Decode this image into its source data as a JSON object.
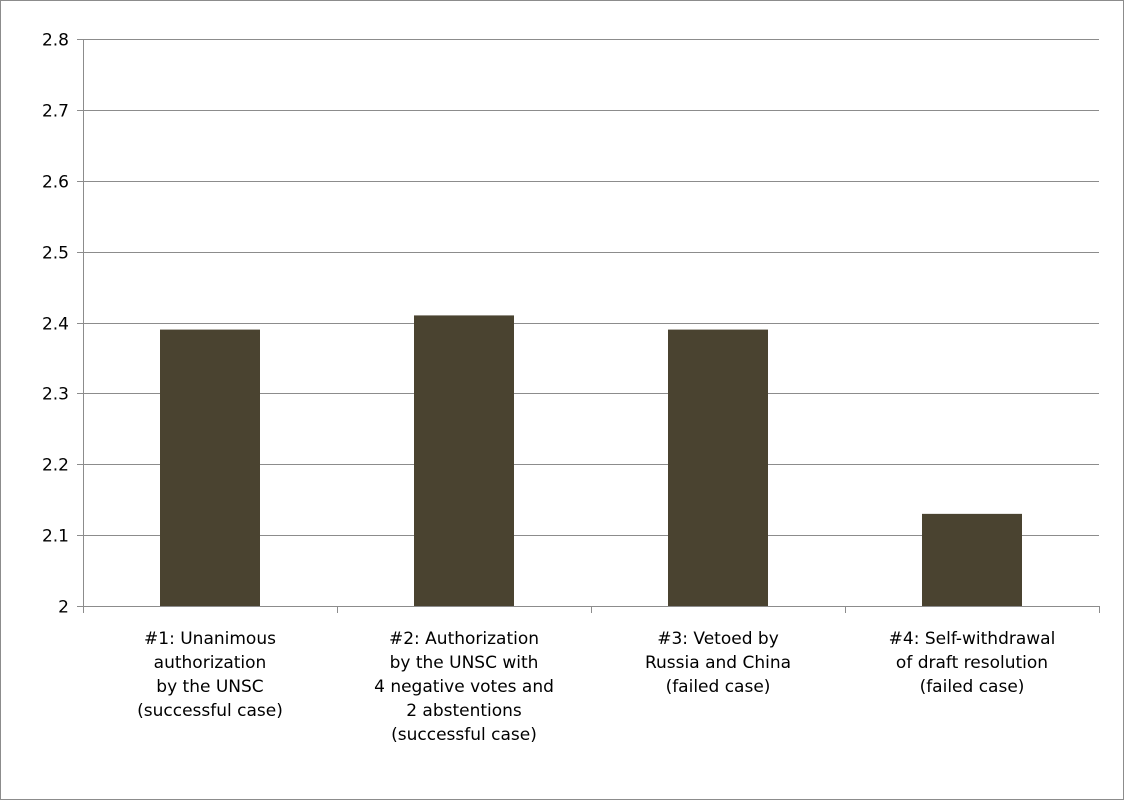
{
  "chart_data": {
    "type": "bar",
    "title": "",
    "xlabel": "",
    "ylabel": "",
    "ylim": [
      2,
      2.8
    ],
    "y_ticks": [
      "2",
      "2.1",
      "2.2",
      "2.3",
      "2.4",
      "2.5",
      "2.6",
      "2.7",
      "2.8"
    ],
    "grid": true,
    "legend": "none",
    "bar_color": "#4a4330",
    "categories": [
      [
        "#1: Unanimous",
        "authorization",
        "by the UNSC",
        "(successful case)"
      ],
      [
        "#2: Authorization",
        "by the UNSC with",
        "4 negative votes and",
        "2 abstentions",
        "(successful case)"
      ],
      [
        "#3: Vetoed by",
        "Russia and China",
        "(failed case)"
      ],
      [
        "#4: Self-withdrawal",
        "of draft resolution",
        "(failed case)"
      ]
    ],
    "values": [
      2.39,
      2.41,
      2.39,
      2.13
    ]
  }
}
